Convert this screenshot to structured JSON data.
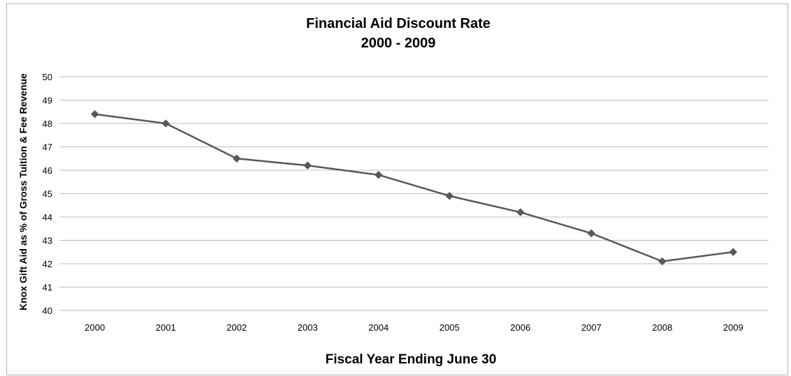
{
  "chart_data": {
    "type": "line",
    "title": [
      "Financial Aid Discount Rate",
      "2000 - 2009"
    ],
    "xlabel": "Fiscal Year Ending June 30",
    "ylabel": "Knox Gift Aid as % of Gross Tuition & Fee Revenue",
    "categories": [
      "2000",
      "2001",
      "2002",
      "2003",
      "2004",
      "2005",
      "2006",
      "2007",
      "2008",
      "2009"
    ],
    "series": [
      {
        "values": [
          48.4,
          48.0,
          46.5,
          46.2,
          45.8,
          44.9,
          44.2,
          43.3,
          42.1,
          42.5
        ]
      }
    ],
    "ylim": [
      40,
      50
    ],
    "yticks": [
      "40",
      "41",
      "42",
      "43",
      "44",
      "45",
      "46",
      "47",
      "48",
      "49",
      "50"
    ],
    "grid": true,
    "legend": "none",
    "colors": {
      "line": "#595959",
      "marker": "#595959",
      "grid": "#bfbfbf",
      "border": "#b3b3b3"
    }
  }
}
